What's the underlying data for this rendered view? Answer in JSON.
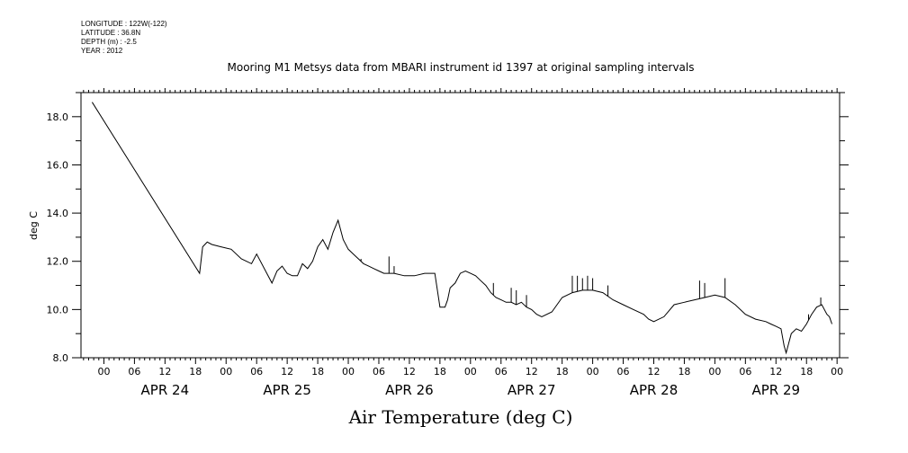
{
  "meta": {
    "longitude": "LONGITUDE : 122W(-122)",
    "latitude": "LATITUDE : 36.8N",
    "depth": "DEPTH (m) : -2.5",
    "year": "YEAR : 2012"
  },
  "chart_data": {
    "type": "line",
    "title": "Mooring M1 Metsys data from MBARI instrument id 1397 at original sampling intervals",
    "xlabel": "Air Temperature (deg C)",
    "ylabel": "deg C",
    "ylim": [
      8.0,
      19.0
    ],
    "xlim_hours": [
      -4.5,
      144.5
    ],
    "y_ticks": [
      "8.0",
      "10.0",
      "12.0",
      "14.0",
      "16.0",
      "18.0"
    ],
    "hour_tick_labels": [
      "00",
      "06",
      "12",
      "18",
      "00",
      "06",
      "12",
      "18",
      "00",
      "06",
      "12",
      "18",
      "00",
      "06",
      "12",
      "18",
      "00",
      "06",
      "12",
      "18",
      "00",
      "06",
      "12",
      "18",
      "00"
    ],
    "day_labels": [
      "APR 24",
      "APR 25",
      "APR 26",
      "APR 27",
      "APR 28",
      "APR 29"
    ],
    "grid": false,
    "series": [
      {
        "name": "",
        "x_hours_from_apr24_00": [
          -2.3,
          18.8,
          19.4,
          20.3,
          21.2,
          23.0,
          25.0,
          27.0,
          28.0,
          29.0,
          30.0,
          32.0,
          33.0,
          34.0,
          35.0,
          36.0,
          37.0,
          38.0,
          39.0,
          40.0,
          41.0,
          42.0,
          43.0,
          44.0,
          45.0,
          46.0,
          47.0,
          48.0,
          49.0,
          50.0,
          51.0,
          52.0,
          53.0,
          54.0,
          55.0,
          57.0,
          59.0,
          61.0,
          63.0,
          65.0,
          66.0,
          67.0,
          67.5,
          68.0,
          69.0,
          70.0,
          71.0,
          72.0,
          73.0,
          74.0,
          75.0,
          76.0,
          77.0,
          78.0,
          79.0,
          80.0,
          81.0,
          82.0,
          83.0,
          84.0,
          85.0,
          86.0,
          88.0,
          90.0,
          92.0,
          94.0,
          96.0,
          98.0,
          100.0,
          102.0,
          104.0,
          106.0,
          107.0,
          108.0,
          110.0,
          112.0,
          114.0,
          116.0,
          118.0,
          120.0,
          122.0,
          124.0,
          126.0,
          128.0,
          130.0,
          131.0,
          132.0,
          133.0,
          133.6,
          134.0,
          135.0,
          136.0,
          137.0,
          138.0,
          139.0,
          140.0,
          141.0,
          142.0,
          142.5,
          143.0
        ],
        "y_deg_c": [
          18.6,
          11.5,
          12.6,
          12.8,
          12.7,
          12.6,
          12.5,
          12.1,
          12.0,
          11.9,
          12.3,
          11.5,
          11.1,
          11.6,
          11.8,
          11.5,
          11.4,
          11.4,
          11.9,
          11.7,
          12.0,
          12.6,
          12.9,
          12.5,
          13.2,
          13.7,
          12.9,
          12.5,
          12.3,
          12.1,
          11.9,
          11.8,
          11.7,
          11.6,
          11.5,
          11.5,
          11.4,
          11.4,
          11.5,
          11.5,
          10.1,
          10.1,
          10.4,
          10.9,
          11.1,
          11.5,
          11.6,
          11.5,
          11.4,
          11.2,
          11.0,
          10.7,
          10.5,
          10.4,
          10.3,
          10.3,
          10.2,
          10.3,
          10.1,
          10.0,
          9.8,
          9.7,
          9.9,
          10.5,
          10.7,
          10.8,
          10.8,
          10.7,
          10.4,
          10.2,
          10.0,
          9.8,
          9.6,
          9.5,
          9.7,
          10.2,
          10.3,
          10.4,
          10.5,
          10.6,
          10.5,
          10.2,
          9.8,
          9.6,
          9.5,
          9.4,
          9.3,
          9.2,
          8.5,
          8.2,
          9.0,
          9.2,
          9.1,
          9.4,
          9.8,
          10.1,
          10.2,
          9.8,
          9.7,
          9.4
        ]
      }
    ],
    "spikes": [
      {
        "x": 50.5,
        "y": 12.1
      },
      {
        "x": 56.0,
        "y": 12.2
      },
      {
        "x": 57.0,
        "y": 11.8
      },
      {
        "x": 76.5,
        "y": 11.1
      },
      {
        "x": 80.0,
        "y": 10.9
      },
      {
        "x": 81.0,
        "y": 10.8
      },
      {
        "x": 83.0,
        "y": 10.6
      },
      {
        "x": 92.0,
        "y": 11.4
      },
      {
        "x": 93.0,
        "y": 11.4
      },
      {
        "x": 94.0,
        "y": 11.3
      },
      {
        "x": 95.0,
        "y": 11.4
      },
      {
        "x": 96.0,
        "y": 11.3
      },
      {
        "x": 99.0,
        "y": 11.0
      },
      {
        "x": 117.0,
        "y": 11.2
      },
      {
        "x": 118.0,
        "y": 11.1
      },
      {
        "x": 122.0,
        "y": 11.3
      },
      {
        "x": 140.8,
        "y": 10.5
      },
      {
        "x": 138.4,
        "y": 9.8
      }
    ]
  }
}
